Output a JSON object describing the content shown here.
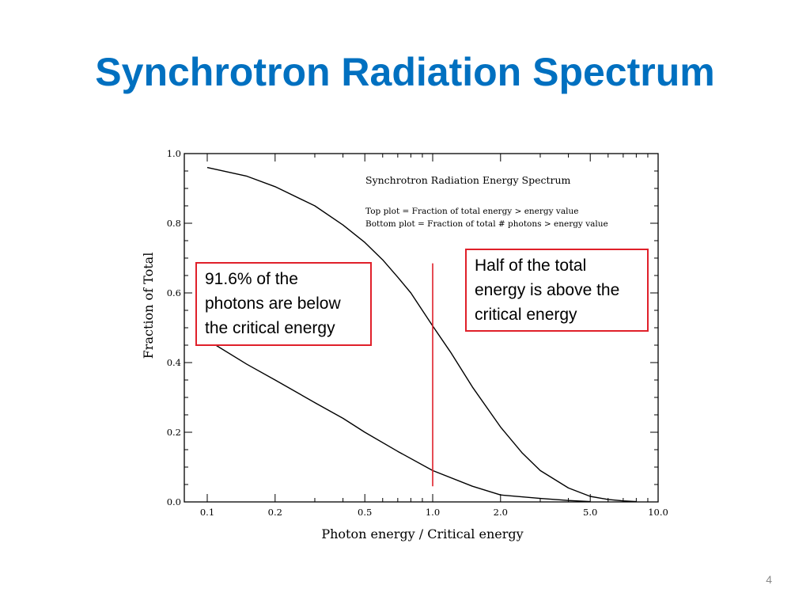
{
  "slide": {
    "title": "Synchrotron Radiation Spectrum",
    "page_number": "4"
  },
  "callouts": {
    "left": "91.6% of the\nphotons are below\nthe critical energy",
    "right": "Half of the total\nenergy is above the\ncritical energy"
  },
  "colors": {
    "title": "#0070c0",
    "marker": "#e0202a",
    "curve": "#000000"
  },
  "chart_data": {
    "type": "line",
    "title": "Synchrotron Radiation Energy Spectrum",
    "annotations": [
      "Top plot = Fraction of total energy > energy value",
      "Bottom plot = Fraction of total # photons > energy value"
    ],
    "xlabel": "Photon energy / Critical energy",
    "ylabel": "Fraction of Total",
    "x_scale": "log",
    "xlim": [
      0.1,
      10.0
    ],
    "ylim": [
      0.0,
      1.0
    ],
    "x_ticks": [
      0.1,
      0.2,
      0.5,
      1.0,
      2.0,
      5.0,
      10.0
    ],
    "x_tick_labels": [
      "0.1",
      "0.2",
      "0.5",
      "1.0",
      "2.0",
      "5.0",
      "10.0"
    ],
    "y_ticks": [
      0.0,
      0.2,
      0.4,
      0.6,
      0.8,
      1.0
    ],
    "y_tick_labels": [
      "0.0",
      "0.2",
      "0.4",
      "0.6",
      "0.8",
      "1.0"
    ],
    "grid": false,
    "series": [
      {
        "x": [
          0.1,
          0.15,
          0.2,
          0.3,
          0.4,
          0.5,
          0.6,
          0.7,
          0.8,
          1.0,
          1.2,
          1.5,
          2.0,
          2.5,
          3.0,
          4.0,
          5.0,
          6.0,
          7.0,
          8.0
        ],
        "values": [
          0.96,
          0.935,
          0.905,
          0.85,
          0.795,
          0.745,
          0.695,
          0.645,
          0.6,
          0.505,
          0.43,
          0.33,
          0.215,
          0.14,
          0.09,
          0.04,
          0.016,
          0.007,
          0.003,
          0.001
        ]
      },
      {
        "x": [
          0.1,
          0.15,
          0.2,
          0.3,
          0.4,
          0.5,
          0.7,
          1.0,
          1.5,
          2.0,
          3.0,
          4.0,
          5.0
        ],
        "values": [
          0.465,
          0.395,
          0.35,
          0.285,
          0.24,
          0.2,
          0.145,
          0.09,
          0.045,
          0.02,
          0.01,
          0.004,
          0.001
        ]
      }
    ],
    "marker_line": {
      "x": 1.0,
      "y_range": [
        0.045,
        0.685
      ]
    }
  }
}
